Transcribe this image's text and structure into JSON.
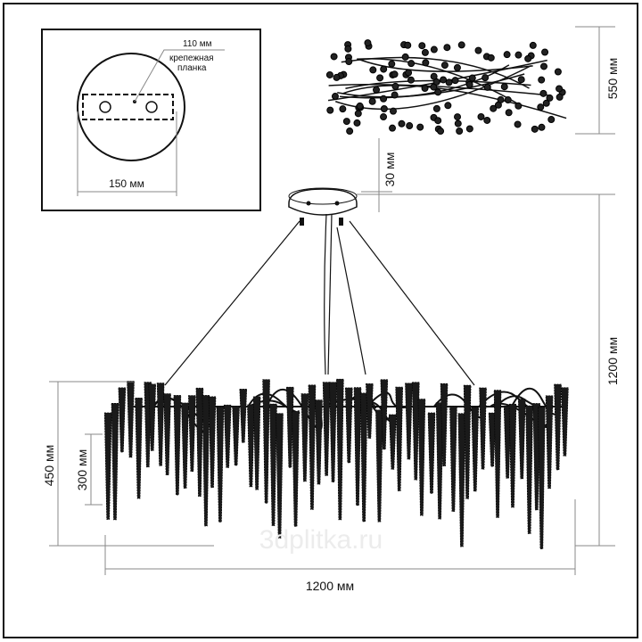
{
  "mount_detail": {
    "plate_label": "110 мм",
    "bracket_label_line1": "крепежная",
    "bracket_label_line2": "планка",
    "canopy_diameter": "150 мм"
  },
  "dimensions": {
    "top_view_depth": "550 мм",
    "canopy_height": "30 мм",
    "total_height": "1200 мм",
    "body_height": "450 мм",
    "crystal_height": "300 мм",
    "width": "1200 мм"
  },
  "watermark": "3dplitka.ru",
  "colors": {
    "line": "#111111",
    "dimension": "#888888",
    "watermark": "#e6e6e6"
  }
}
